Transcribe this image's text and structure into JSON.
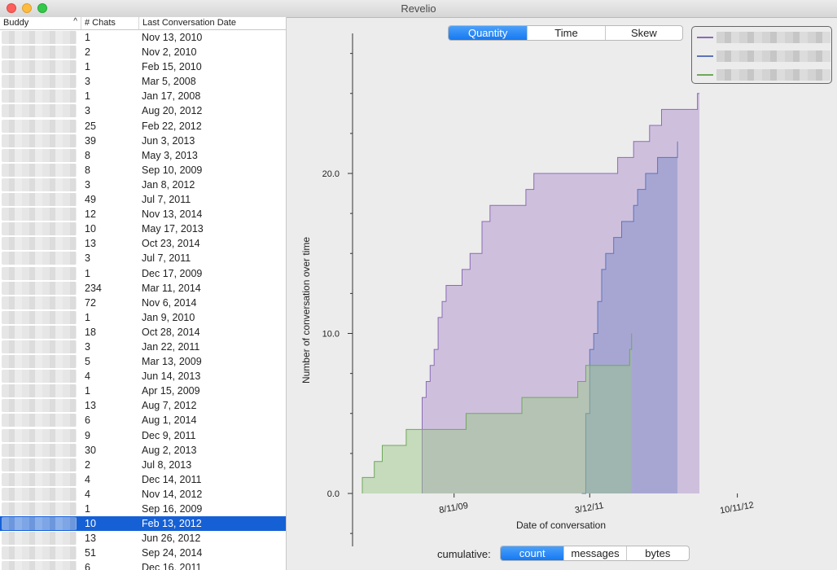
{
  "window": {
    "title": "Revelio"
  },
  "table": {
    "headers": {
      "buddy": "Buddy",
      "chats": "# Chats",
      "date": "Last Conversation Date"
    },
    "sort_indicator": "^",
    "rows": [
      {
        "chats": "1",
        "date": "Nov 13, 2010"
      },
      {
        "chats": "2",
        "date": "Nov 2, 2010"
      },
      {
        "chats": "1",
        "date": "Feb 15, 2010"
      },
      {
        "chats": "3",
        "date": "Mar 5, 2008"
      },
      {
        "chats": "1",
        "date": "Jan 17, 2008"
      },
      {
        "chats": "3",
        "date": "Aug 20, 2012"
      },
      {
        "chats": "25",
        "date": "Feb 22, 2012"
      },
      {
        "chats": "39",
        "date": "Jun 3, 2013"
      },
      {
        "chats": "8",
        "date": "May 3, 2013"
      },
      {
        "chats": "8",
        "date": "Sep 10, 2009"
      },
      {
        "chats": "3",
        "date": "Jan 8, 2012"
      },
      {
        "chats": "49",
        "date": "Jul 7, 2011"
      },
      {
        "chats": "12",
        "date": "Nov 13, 2014"
      },
      {
        "chats": "10",
        "date": "May 17, 2013"
      },
      {
        "chats": "13",
        "date": "Oct 23, 2014"
      },
      {
        "chats": "3",
        "date": "Jul 7, 2011"
      },
      {
        "chats": "1",
        "date": "Dec 17, 2009"
      },
      {
        "chats": "234",
        "date": "Mar 11, 2014"
      },
      {
        "chats": "72",
        "date": "Nov 6, 2014"
      },
      {
        "chats": "1",
        "date": "Jan 9, 2010"
      },
      {
        "chats": "18",
        "date": "Oct 28, 2014"
      },
      {
        "chats": "3",
        "date": "Jan 22, 2011"
      },
      {
        "chats": "5",
        "date": "Mar 13, 2009"
      },
      {
        "chats": "4",
        "date": "Jun 14, 2013"
      },
      {
        "chats": "1",
        "date": "Apr 15, 2009"
      },
      {
        "chats": "13",
        "date": "Aug 7, 2012"
      },
      {
        "chats": "6",
        "date": "Aug 1, 2014"
      },
      {
        "chats": "9",
        "date": "Dec 9, 2011"
      },
      {
        "chats": "30",
        "date": "Aug 2, 2013"
      },
      {
        "chats": "2",
        "date": "Jul 8, 2013"
      },
      {
        "chats": "4",
        "date": "Dec 14, 2011"
      },
      {
        "chats": "4",
        "date": "Nov 14, 2012"
      },
      {
        "chats": "1",
        "date": "Sep 16, 2009"
      },
      {
        "chats": "10",
        "date": "Feb 13, 2012",
        "selected": true
      },
      {
        "chats": "13",
        "date": "Jun 26, 2012"
      },
      {
        "chats": "51",
        "date": "Sep 24, 2014"
      },
      {
        "chats": "6",
        "date": "Dec 16, 2011"
      }
    ]
  },
  "view_tabs": [
    {
      "label": "Quantity",
      "active": true
    },
    {
      "label": "Time",
      "active": false
    },
    {
      "label": "Skew",
      "active": false
    }
  ],
  "cumulative": {
    "label": "cumulative:",
    "options": [
      {
        "label": "count",
        "active": true
      },
      {
        "label": "messages",
        "active": false
      },
      {
        "label": "bytes",
        "active": false
      }
    ]
  },
  "colors": {
    "purple": "#8a6bb6",
    "blue": "#5c74b8",
    "green": "#6ea85a",
    "selection": "#1660d6",
    "accent": "#1579f2"
  },
  "chart_data": {
    "type": "area",
    "xlabel": "Date of conversation",
    "ylabel": "Number of conversation over time",
    "x_ticks": [
      "8/11/09",
      "3/12/11",
      "10/11/12"
    ],
    "y_ticks": [
      "0.0",
      "10.0",
      "20.0"
    ],
    "ylim": [
      0,
      30
    ],
    "grid": false,
    "legend": "top-right",
    "series": [
      {
        "color": "#8a6bb6",
        "points": [
          [
            0.15,
            0
          ],
          [
            0.15,
            5
          ],
          [
            0.15,
            6
          ],
          [
            0.16,
            7
          ],
          [
            0.17,
            8
          ],
          [
            0.18,
            9
          ],
          [
            0.19,
            11
          ],
          [
            0.2,
            12
          ],
          [
            0.21,
            13
          ],
          [
            0.25,
            14
          ],
          [
            0.27,
            15
          ],
          [
            0.3,
            17
          ],
          [
            0.32,
            18
          ],
          [
            0.41,
            19
          ],
          [
            0.43,
            20
          ],
          [
            0.64,
            21
          ],
          [
            0.68,
            22
          ],
          [
            0.72,
            23
          ],
          [
            0.75,
            24
          ],
          [
            0.84,
            25
          ],
          [
            0.845,
            25
          ]
        ]
      },
      {
        "color": "#5c74b8",
        "points": [
          [
            0.55,
            0
          ],
          [
            0.56,
            5
          ],
          [
            0.57,
            9
          ],
          [
            0.58,
            10
          ],
          [
            0.59,
            12
          ],
          [
            0.6,
            14
          ],
          [
            0.61,
            15
          ],
          [
            0.63,
            16
          ],
          [
            0.65,
            17
          ],
          [
            0.68,
            18
          ],
          [
            0.69,
            19
          ],
          [
            0.71,
            20
          ],
          [
            0.74,
            21
          ],
          [
            0.785,
            21
          ],
          [
            0.79,
            22
          ]
        ]
      },
      {
        "color": "#6ea85a",
        "points": [
          [
            0.0,
            0
          ],
          [
            0.0,
            1
          ],
          [
            0.03,
            2
          ],
          [
            0.05,
            3
          ],
          [
            0.11,
            3
          ],
          [
            0.11,
            4
          ],
          [
            0.26,
            4
          ],
          [
            0.26,
            5
          ],
          [
            0.4,
            5
          ],
          [
            0.4,
            6
          ],
          [
            0.54,
            6
          ],
          [
            0.54,
            7
          ],
          [
            0.56,
            8
          ],
          [
            0.67,
            8
          ],
          [
            0.67,
            9
          ],
          [
            0.675,
            10
          ]
        ]
      }
    ],
    "x_tick_positions": [
      0.23,
      0.57,
      0.94
    ],
    "series_x_domain": [
      0,
      1
    ]
  }
}
